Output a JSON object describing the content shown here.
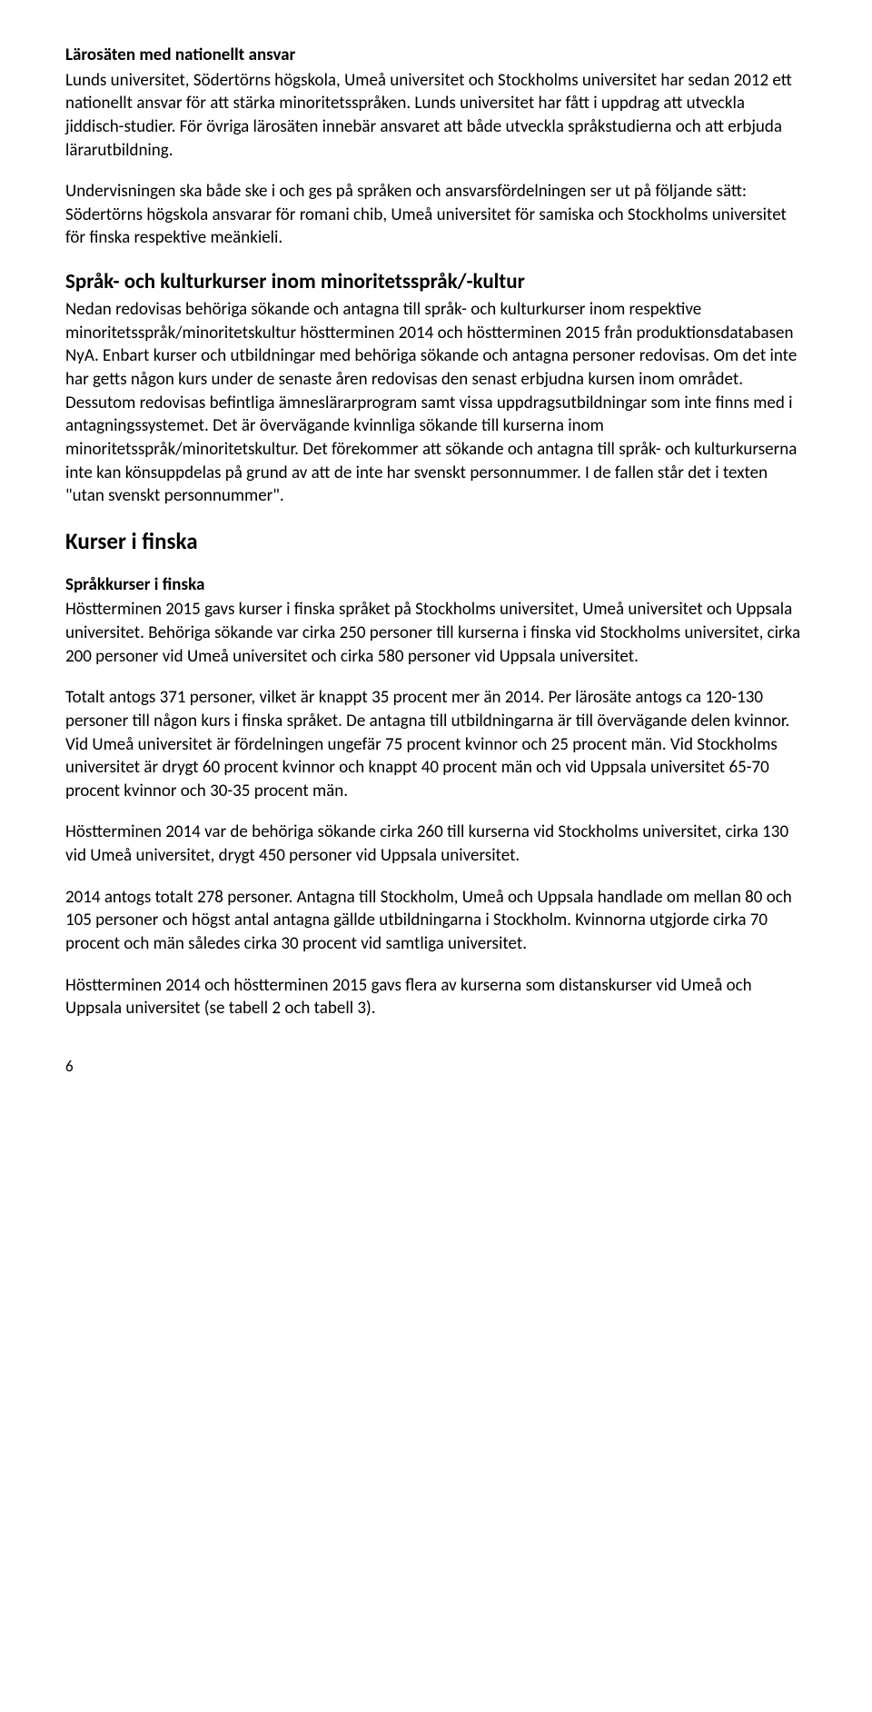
{
  "h1": "Lärosäten med nationellt ansvar",
  "p1": "Lunds universitet, Södertörns högskola, Umeå universitet och Stockholms universitet har sedan 2012 ett nationellt ansvar för att stärka minoritetsspråken. Lunds universitet har fått i uppdrag att utveckla jiddisch-studier. För övriga lärosäten innebär ansvaret att både utveckla språkstudierna och att erbjuda lärarutbildning.",
  "p2": "Undervisningen ska både ske i och ges på språken och ansvarsfördelningen ser ut på följande sätt: Södertörns högskola ansvarar för romani chib, Umeå universitet för samiska och Stockholms universitet för finska respektive meänkieli.",
  "h2": "Språk- och kulturkurser inom minoritetsspråk/-kultur",
  "p3": "Nedan redovisas behöriga sökande och antagna till språk- och kulturkurser inom respektive minoritetsspråk/minoritetskultur höstterminen 2014 och höstterminen 2015 från produktionsdatabasen NyA. Enbart kurser och utbildningar med behöriga sökande och antagna personer redovisas. Om det inte har getts någon kurs under de senaste åren redovisas den senast erbjudna kursen inom området. Dessutom redovisas befintliga ämneslärarprogram samt vissa uppdragsutbildningar som inte finns med i antagningssystemet. Det är övervägande kvinnliga sökande till kurserna inom minoritetsspråk/minoritetskultur. Det förekommer att sökande och antagna till språk- och kulturkurserna inte kan könsuppdelas på grund av att de inte har svenskt personnummer. I de fallen står det i texten \"utan svenskt personnummer\".",
  "h3": "Kurser i finska",
  "h4": "Språkkurser i finska",
  "p4": "Höstterminen 2015 gavs kurser i finska språket på Stockholms universitet, Umeå universitet och Uppsala universitet. Behöriga sökande var cirka 250 personer till kurserna i finska vid Stockholms universitet, cirka 200 personer vid Umeå universitet och cirka 580 personer vid Uppsala universitet.",
  "p5": "Totalt antogs 371 personer, vilket är knappt 35 procent mer än 2014. Per lärosäte antogs ca 120-130 personer till någon kurs i finska språket. De antagna till utbildningarna är till övervägande delen kvinnor. Vid Umeå universitet är fördelningen ungefär 75 procent kvinnor och 25 procent män. Vid Stockholms universitet är drygt 60 procent kvinnor och knappt 40 procent män och vid Uppsala universitet 65-70 procent kvinnor och 30-35 procent män.",
  "p6": "Höstterminen 2014 var de behöriga sökande cirka 260 till kurserna vid Stockholms universitet, cirka 130 vid Umeå universitet, drygt 450 personer vid Uppsala universitet.",
  "p7": "2014 antogs totalt 278 personer. Antagna till Stockholm, Umeå och Uppsala handlade om mellan 80 och 105 personer och högst antal antagna gällde utbildningarna i Stockholm. Kvinnorna utgjorde cirka 70 procent och män således cirka 30 procent vid samtliga universitet.",
  "p8": "Höstterminen 2014 och höstterminen 2015 gavs flera av kurserna som distanskurser vid Umeå och Uppsala universitet (se tabell 2 och tabell 3).",
  "pagenum": "6"
}
